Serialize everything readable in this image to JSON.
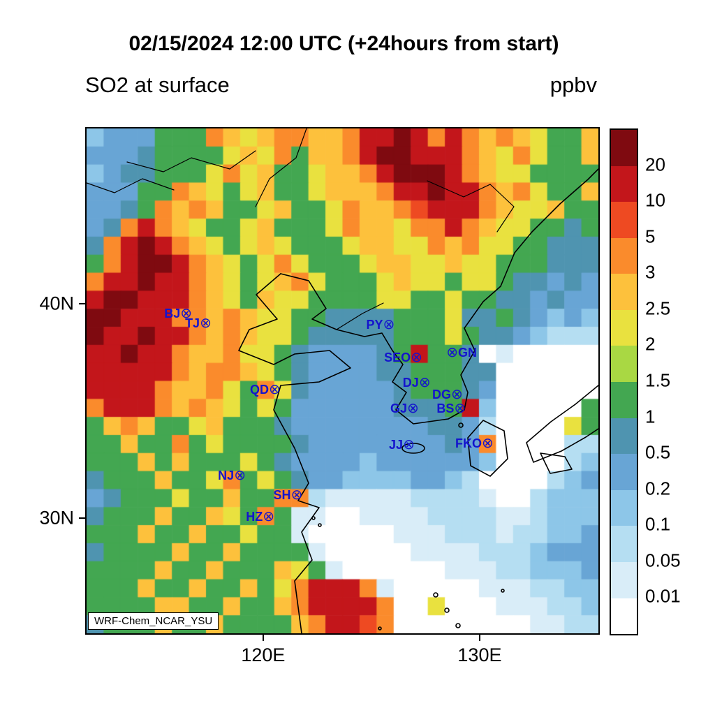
{
  "title": "02/15/2024 12:00 UTC (+24hours from start)",
  "subtitle_left": "SO2 at surface",
  "units": "ppbv",
  "watermark": "WRF-Chem_NCAR_YSU",
  "axes": {
    "lat_ticks": [
      {
        "label": "40N",
        "f": 0.347
      },
      {
        "label": "30N",
        "f": 0.772
      }
    ],
    "lon_ticks": [
      {
        "label": "120E",
        "f": 0.345
      },
      {
        "label": "130E",
        "f": 0.768
      }
    ]
  },
  "cities": [
    {
      "name": "BJ",
      "fx": 0.191,
      "fy": 0.367,
      "side": "left"
    },
    {
      "name": "TJ",
      "fx": 0.229,
      "fy": 0.386,
      "side": "left"
    },
    {
      "name": "PY",
      "fx": 0.587,
      "fy": 0.389,
      "side": "left"
    },
    {
      "name": "SEO",
      "fx": 0.641,
      "fy": 0.454,
      "side": "left"
    },
    {
      "name": "GN",
      "fx": 0.718,
      "fy": 0.444,
      "side": "right"
    },
    {
      "name": "DJ",
      "fx": 0.657,
      "fy": 0.503,
      "side": "left"
    },
    {
      "name": "DG",
      "fx": 0.72,
      "fy": 0.527,
      "side": "left"
    },
    {
      "name": "QD",
      "fx": 0.364,
      "fy": 0.517,
      "side": "left"
    },
    {
      "name": "GJ",
      "fx": 0.634,
      "fy": 0.554,
      "side": "left"
    },
    {
      "name": "BS",
      "fx": 0.726,
      "fy": 0.554,
      "side": "left"
    },
    {
      "name": "JJ",
      "fx": 0.626,
      "fy": 0.626,
      "side": "left"
    },
    {
      "name": "FKO",
      "fx": 0.78,
      "fy": 0.624,
      "side": "left"
    },
    {
      "name": "NJ",
      "fx": 0.296,
      "fy": 0.687,
      "side": "left"
    },
    {
      "name": "SH",
      "fx": 0.407,
      "fy": 0.726,
      "side": "left"
    },
    {
      "name": "HZ",
      "fx": 0.352,
      "fy": 0.769,
      "side": "left"
    }
  ],
  "chart_data": {
    "type": "heatmap",
    "title": "SO2 at surface",
    "units": "ppbv",
    "model_label": "WRF-Chem_NCAR_YSU",
    "valid_time": "02/15/2024 12:00 UTC (+24hours from start)",
    "lon_range_deg": [
      112.0,
      135.6
    ],
    "lat_range_deg": [
      24.5,
      48.1
    ],
    "legend_position": "right",
    "levels_ppbv": [
      0.01,
      0.05,
      0.1,
      0.2,
      0.5,
      1,
      1.5,
      2,
      2.5,
      3,
      5,
      10,
      20
    ],
    "colorbar_labels_top_to_bottom": [
      "20",
      "10",
      "5",
      "3",
      "2.5",
      "2",
      "1.5",
      "1",
      "0.5",
      "0.2",
      "0.1",
      "0.05",
      "0.01"
    ],
    "colors_low_to_high": [
      "#ffffff",
      "#d9edf8",
      "#b5def2",
      "#8dc6e8",
      "#68a5d5",
      "#4f94b0",
      "#43a751",
      "#a9d843",
      "#e9e13f",
      "#fdc13c",
      "#fa8b2c",
      "#ee4a22",
      "#c3161b",
      "#7f0a10"
    ],
    "city_marker_color": "#1414cd",
    "grid_cols": 30,
    "grid_rows": 28,
    "grid_level_index_hex_rows_north_to_south": [
      "3444666a989aa99accdcaca9a98669",
      "44456666898a699acddccca98a8669",
      "34556668a8966899acdddca9886666",
      "44466a98689668999accdcca9a8669",
      "4456a9a96689668a99abccca988966",
      "45aca9866896668a998aaca9886656",
      "5acdca98689866689988a9a8866555",
      "6acddca9868a866689988988666555",
      "accdcca98689a86668988688655454",
      "cddccca98698866668866866554544",
      "ddcccaa9a988665555666855654343",
      "dccdcca9a988655555666865543222",
      "ccdcca99a8865444456c6650100000",
      "ccccca9aa986544445566655000000",
      "cccca99a86a8544444566654000000",
      "accca9a986864444445556c3000006",
      "69a966896665444444445542000086",
      "66966a68666654444444454a000022",
      "666969666865444434444443000023",
      "56669668a686544333344320000234",
      "45666866966aa21111122221002333",
      "5666966986a6110011112222112333",
      "666966966866100000111222122334",
      "566669669666610000011112223444",
      "666696696669861000000111223334",
      "666966966968accca1000001112233",
      "666699669669acccca008000111223",
      "5666966966669accba000000001122"
    ]
  }
}
